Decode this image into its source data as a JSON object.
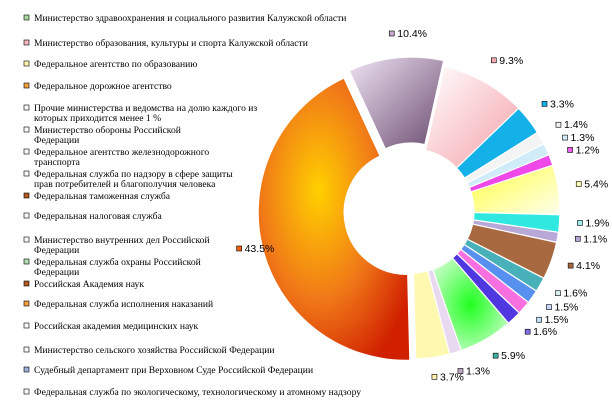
{
  "chart_data": {
    "type": "pie",
    "variant": "donut",
    "legend_placement": "left",
    "legend": [
      {
        "lines": [
          "Министерство здравоохранения и социального развития Калужской области"
        ],
        "color": "#a8d8a0"
      },
      {
        "lines": [
          "Министерство образования, культуры и спорта Калужской области"
        ],
        "color": "#f4b6bc"
      },
      {
        "lines": [
          "Федеральное агентство по образованию"
        ],
        "color": "#fff7b0"
      },
      {
        "lines": [
          "Федеральное дорожное агентство"
        ],
        "color": "#f0a040"
      },
      {
        "lines": [
          "Прочие министерства и ведомства на долю каждого из",
          "которых приходится менее 1 %"
        ],
        "color": "#f8f8f8"
      },
      {
        "lines": [
          "Министерство обороны Российской",
          "Федерации"
        ],
        "color": "#f8f8f8"
      },
      {
        "lines": [
          "Федеральное агентство железнодорожного",
          "транспорта"
        ],
        "color": "#f8f8f8"
      },
      {
        "lines": [
          "Федеральная служба по надзору в сфере защиты",
          "прав потребителей и благополучия человека"
        ],
        "color": "#f8f8f8"
      },
      {
        "lines": [
          "Федеральная таможенная служба"
        ],
        "color": "#b05a20"
      },
      {
        "lines": [
          "Федеральная налоговая служба"
        ],
        "color": "#f8f8f8"
      },
      {
        "lines": [
          "Министерство внутренних дел Российской",
          "Федерации"
        ],
        "color": "#f8f8f8"
      },
      {
        "lines": [
          "Федеральная служба охраны Российской",
          "Федерации"
        ],
        "color": "#b0e0b0"
      },
      {
        "lines": [
          "Российская Академия наук"
        ],
        "color": "#b05a20"
      },
      {
        "lines": [
          "Федеральная служба исполнения наказаний"
        ],
        "color": "#f0a040"
      },
      {
        "lines": [
          "Российская академия медицинских наук"
        ],
        "color": "#f8f8f8"
      },
      {
        "lines": [
          "Министерство сельского хозяйства Российской Федерации"
        ],
        "color": "#f8f8f8"
      },
      {
        "lines": [
          "Судебный департамент при Верховном Суде Российской Федерации"
        ],
        "color": "#9ab0d8"
      },
      {
        "lines": [
          "Федеральная служба по экологическому, технологическому и атомному надзору"
        ],
        "color": "#f8f8f8"
      }
    ],
    "slices": [
      {
        "value": 9.3,
        "label": "9.3%",
        "color": "#f8d0d4",
        "marker": "#f4a8b0"
      },
      {
        "value": 3.3,
        "label": "3.3%",
        "color": "#14b0e8",
        "marker": "#14b0e8"
      },
      {
        "value": 1.4,
        "label": "1.4%",
        "color": "#f4f4f4",
        "marker": "#f0f0f0"
      },
      {
        "value": 1.3,
        "label": "1.3%",
        "color": "#d0ecf8",
        "marker": "#d0ecf8"
      },
      {
        "value": 1.2,
        "label": "1.2%",
        "color": "#f048e8",
        "marker": "#f060f0"
      },
      {
        "value": 5.4,
        "label": "5.4%",
        "color": "#ffff60",
        "marker": "#ffffb0"
      },
      {
        "value": 1.9,
        "label": "1.9%",
        "color": "#30e8e0",
        "marker": "#a0f0ec"
      },
      {
        "value": 1.1,
        "label": "1.1%",
        "color": "#b8a8d8",
        "marker": "#b8a8d8"
      },
      {
        "value": 4.1,
        "label": "4.1%",
        "color": "#a86840",
        "marker": "#a86840"
      },
      {
        "value": 1.6,
        "label": "1.6%",
        "color": "#48b0b8",
        "marker": "#d8f0f0"
      },
      {
        "value": 1.5,
        "label": "1.5%",
        "color": "#5890f0",
        "marker": "#c8d8f8"
      },
      {
        "value": 1.5,
        "label": "1.5%",
        "color": "#f870e0",
        "marker": "#c8e0f8"
      },
      {
        "value": 1.6,
        "label": "1.6%",
        "color": "#5038e0",
        "marker": "#8070e8"
      },
      {
        "value": 5.9,
        "label": "5.9%",
        "color": "#40f040",
        "marker": "#40b0a0"
      },
      {
        "value": 1.3,
        "label": "1.3%",
        "color": "#e8d8f0",
        "marker": "#c0a8c8"
      },
      {
        "value": 3.7,
        "label": "3.7%",
        "color": "#fff8b0",
        "marker": "#fff0b0"
      },
      {
        "value": 43.5,
        "label": "43.5%",
        "color": "#f08020",
        "marker": "#f06010"
      },
      {
        "value": 10.4,
        "label": "10.4%",
        "color": "#8a7090",
        "marker": "#c8a8d0"
      }
    ]
  }
}
